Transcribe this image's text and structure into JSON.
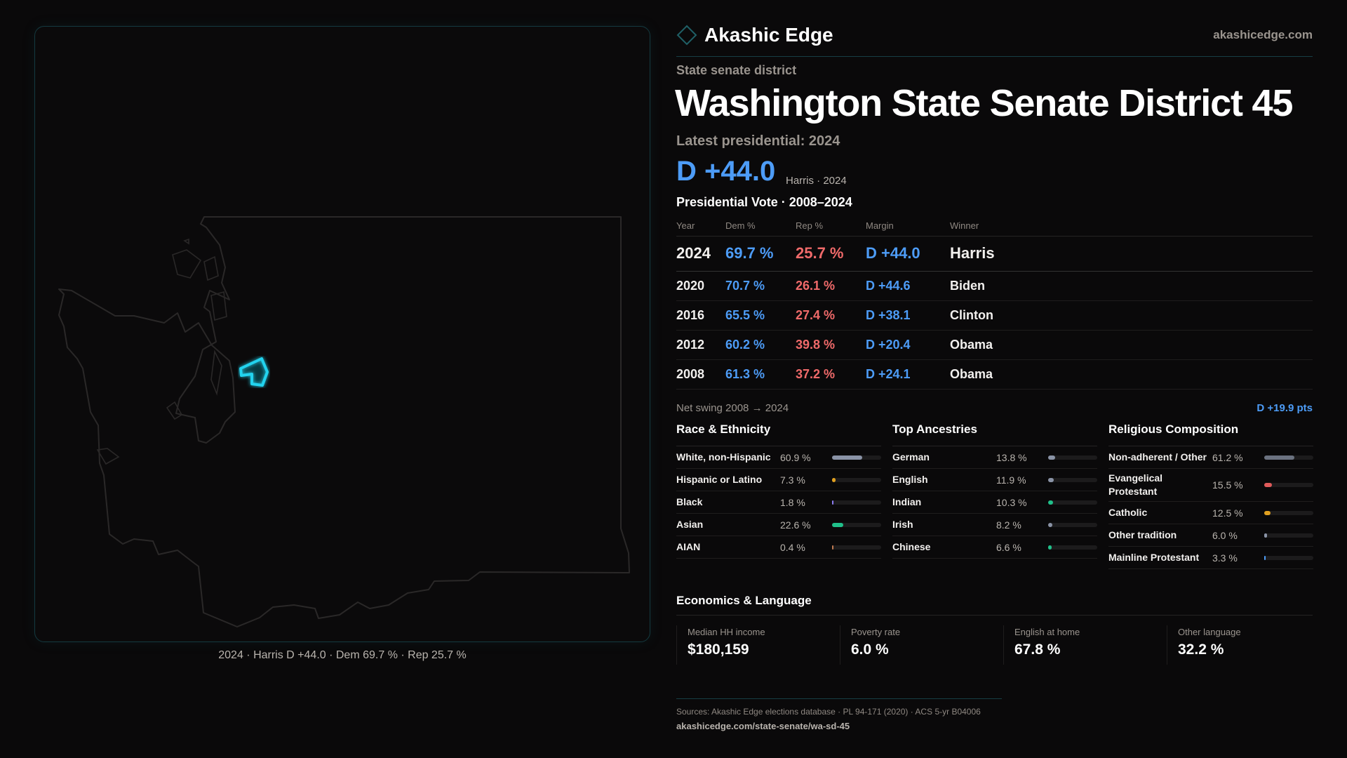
{
  "brand": {
    "name": "Akashic Edge",
    "site": "akashicedge.com",
    "accent": "#22d3ee"
  },
  "header": {
    "kicker": "State senate district",
    "title": "Washington State Senate District 45",
    "latest": "Latest presidential: 2024",
    "margin": "D +44.0",
    "margin_sub": "Harris · 2024"
  },
  "map": {
    "caption": "2024 · Harris D +44.0 · Dem 69.7 % · Rep 25.7 %",
    "highlight_color": "#22d3ee"
  },
  "presidential": {
    "title": "Presidential Vote · 2008–2024",
    "columns": [
      "Year",
      "Dem %",
      "Rep %",
      "Margin",
      "Winner"
    ],
    "rows": [
      {
        "year": "2024",
        "dem": "69.7 %",
        "rep": "25.7 %",
        "margin": "D +44.0",
        "winner": "Harris"
      },
      {
        "year": "2020",
        "dem": "70.7 %",
        "rep": "26.1 %",
        "margin": "D +44.6",
        "winner": "Biden"
      },
      {
        "year": "2016",
        "dem": "65.5 %",
        "rep": "27.4 %",
        "margin": "D +38.1",
        "winner": "Clinton"
      },
      {
        "year": "2012",
        "dem": "60.2 %",
        "rep": "39.8 %",
        "margin": "D +20.4",
        "winner": "Obama"
      },
      {
        "year": "2008",
        "dem": "61.3 %",
        "rep": "37.2 %",
        "margin": "D +24.1",
        "winner": "Obama"
      }
    ],
    "swing_label": "Net swing 2008 → 2024",
    "swing_value": "D +19.9 pts"
  },
  "sections": [
    {
      "title": "Race & Ethnicity",
      "items": [
        {
          "label": "White, non-Hispanic",
          "value": "60.9 %",
          "pct": 60.9,
          "color": "#8a93a6"
        },
        {
          "label": "Hispanic or Latino",
          "value": "7.3 %",
          "pct": 7.3,
          "color": "#e0a020"
        },
        {
          "label": "Black",
          "value": "1.8 %",
          "pct": 1.8,
          "color": "#8b7cf0"
        },
        {
          "label": "Asian",
          "value": "22.6 %",
          "pct": 22.6,
          "color": "#20c08a"
        },
        {
          "label": "AIAN",
          "value": "0.4 %",
          "pct": 0.4,
          "color": "#c07a50"
        }
      ]
    },
    {
      "title": "Top Ancestries",
      "items": [
        {
          "label": "German",
          "value": "13.8 %",
          "pct": 13.8,
          "color": "#8a93a6"
        },
        {
          "label": "English",
          "value": "11.9 %",
          "pct": 11.9,
          "color": "#8a93a6"
        },
        {
          "label": "Indian",
          "value": "10.3 %",
          "pct": 10.3,
          "color": "#20c08a"
        },
        {
          "label": "Irish",
          "value": "8.2 %",
          "pct": 8.2,
          "color": "#8a93a6"
        },
        {
          "label": "Chinese",
          "value": "6.6 %",
          "pct": 6.6,
          "color": "#20c08a"
        }
      ]
    },
    {
      "title": "Religious Composition",
      "items": [
        {
          "label": "Non-adherent / Other",
          "value": "61.2 %",
          "pct": 61.2,
          "color": "#6b7280"
        },
        {
          "label": "Evangelical Protestant",
          "value": "15.5 %",
          "pct": 15.5,
          "color": "#e05a5a"
        },
        {
          "label": "Catholic",
          "value": "12.5 %",
          "pct": 12.5,
          "color": "#e0a020"
        },
        {
          "label": "Other tradition",
          "value": "6.0 %",
          "pct": 6.0,
          "color": "#8a93a6"
        },
        {
          "label": "Mainline Protestant",
          "value": "3.3 %",
          "pct": 3.3,
          "color": "#4d9cf7"
        }
      ]
    }
  ],
  "economics": {
    "title": "Economics & Language",
    "cards": [
      {
        "label": "Median HH income",
        "value": "$180,159"
      },
      {
        "label": "Poverty rate",
        "value": "6.0 %"
      },
      {
        "label": "English at home",
        "value": "67.8 %"
      },
      {
        "label": "Other language",
        "value": "32.2 %"
      }
    ]
  },
  "footer": {
    "sources": "Sources: Akashic Edge elections database · PL 94-171 (2020) · ACS 5-yr B04006",
    "url": "akashicedge.com/state-senate/wa-sd-45"
  }
}
